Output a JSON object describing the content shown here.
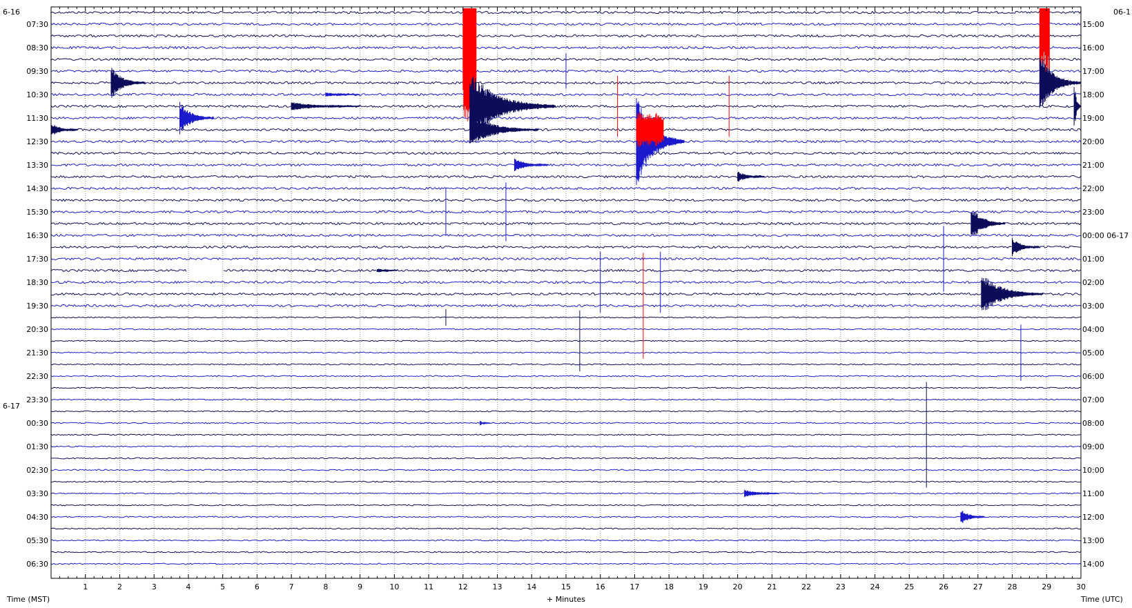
{
  "chart_data": {
    "type": "line",
    "title": "",
    "xlabel": "+ Minutes",
    "left_axis_label": "Time (MST)",
    "right_axis_label": "Time (UTC)",
    "x_range": [
      0,
      30
    ],
    "x_ticks": [
      "1",
      "2",
      "3",
      "4",
      "5",
      "6",
      "7",
      "8",
      "9",
      "10",
      "11",
      "12",
      "13",
      "14",
      "15",
      "16",
      "17",
      "18",
      "19",
      "20",
      "21",
      "22",
      "23",
      "24",
      "25",
      "26",
      "27",
      "28",
      "29",
      "30"
    ],
    "grid": true,
    "date_labels_left": [
      {
        "text": "6-16",
        "row_before": 0
      },
      {
        "text": "6-17",
        "row_before": 34
      }
    ],
    "date_label_right": "06-1",
    "rows_left": [
      "07:30",
      "08:30",
      "09:30",
      "10:30",
      "11:30",
      "12:30",
      "13:30",
      "14:30",
      "15:30",
      "16:30",
      "17:30",
      "18:30",
      "19:30",
      "20:30",
      "21:30",
      "22:30",
      "23:30",
      "00:30",
      "01:30",
      "02:30",
      "03:30",
      "04:30",
      "05:30",
      "06:30"
    ],
    "rows_right": [
      "15:00",
      "16:00",
      "17:00",
      "18:00",
      "19:00",
      "20:00",
      "21:00",
      "22:00",
      "23:00",
      "00:00 06-17",
      "01:00",
      "02:00",
      "03:00",
      "04:00",
      "05:00",
      "06:00",
      "07:00",
      "08:00",
      "09:00",
      "10:00",
      "11:00",
      "12:00",
      "13:00",
      "14:00"
    ],
    "trace_count": 48,
    "series_colors": [
      "#0c0c5a",
      "#1a1acc"
    ],
    "clip_color": "#ff0000",
    "events": [
      {
        "minute": 1.75,
        "trace": 6,
        "amp": 1.4,
        "dur": 1.0,
        "clip": false
      },
      {
        "minute": 3.75,
        "trace": 9,
        "amp": 1.4,
        "dur": 1.0,
        "clip": false
      },
      {
        "minute": 0.0,
        "trace": 10,
        "amp": 0.6,
        "dur": 0.8,
        "clip": false
      },
      {
        "minute": 12.0,
        "trace": 3,
        "amp": 6.5,
        "dur": 0.4,
        "clip": true
      },
      {
        "minute": 12.2,
        "trace": 8,
        "amp": 3.0,
        "dur": 2.5,
        "clip": false
      },
      {
        "minute": 12.2,
        "trace": 10,
        "amp": 1.5,
        "dur": 2.0,
        "clip": false
      },
      {
        "minute": 17.05,
        "trace": 11,
        "amp": 4.0,
        "dur": 1.4,
        "clip": false
      },
      {
        "minute": 17.05,
        "trace": 10,
        "amp": 1.5,
        "dur": 0.8,
        "clip": true
      },
      {
        "minute": 7.0,
        "trace": 8,
        "amp": 0.4,
        "dur": 2.0,
        "clip": false
      },
      {
        "minute": 13.5,
        "trace": 13,
        "amp": 0.6,
        "dur": 1.0,
        "clip": false
      },
      {
        "minute": 20.0,
        "trace": 14,
        "amp": 0.5,
        "dur": 0.8,
        "clip": false
      },
      {
        "minute": 28.8,
        "trace": 0,
        "amp": 6.0,
        "dur": 0.3,
        "clip": true
      },
      {
        "minute": 28.8,
        "trace": 6,
        "amp": 2.5,
        "dur": 2.0,
        "clip": false
      },
      {
        "minute": 29.8,
        "trace": 8,
        "amp": 2.5,
        "dur": 0.3,
        "clip": false
      },
      {
        "minute": 26.8,
        "trace": 18,
        "amp": 1.6,
        "dur": 1.0,
        "clip": false
      },
      {
        "minute": 28.0,
        "trace": 20,
        "amp": 0.8,
        "dur": 0.8,
        "clip": false
      },
      {
        "minute": 27.1,
        "trace": 24,
        "amp": 1.8,
        "dur": 1.8,
        "clip": false
      },
      {
        "minute": 20.2,
        "trace": 41,
        "amp": 0.4,
        "dur": 1.0,
        "clip": false
      },
      {
        "minute": 26.5,
        "trace": 43,
        "amp": 0.7,
        "dur": 0.7,
        "clip": false
      },
      {
        "minute": 8.0,
        "trace": 7,
        "amp": 0.2,
        "dur": 1.0,
        "clip": false
      },
      {
        "minute": 9.5,
        "trace": 22,
        "amp": 0.2,
        "dur": 0.6,
        "clip": false
      },
      {
        "minute": 12.5,
        "trace": 35,
        "amp": 0.2,
        "dur": 0.3,
        "clip": false
      }
    ],
    "spikes": [
      {
        "minute": 11.5,
        "trace": 17,
        "amp": 2.0,
        "clip": false
      },
      {
        "minute": 13.25,
        "trace": 17,
        "amp": 2.5,
        "clip": false
      },
      {
        "minute": 16.0,
        "trace": 23,
        "amp": 2.6,
        "clip": false
      },
      {
        "minute": 17.75,
        "trace": 23,
        "amp": 2.6,
        "clip": false
      },
      {
        "minute": 17.25,
        "trace": 25,
        "amp": 4.5,
        "clip": true
      },
      {
        "minute": 19.75,
        "trace": 8,
        "amp": 2.6,
        "clip": true
      },
      {
        "minute": 16.5,
        "trace": 8,
        "amp": 2.6,
        "clip": true
      },
      {
        "minute": 15.4,
        "trace": 28,
        "amp": 2.6,
        "clip": false
      },
      {
        "minute": 25.5,
        "trace": 36,
        "amp": 4.5,
        "clip": false
      },
      {
        "minute": 26.0,
        "trace": 21,
        "amp": 2.8,
        "clip": false
      },
      {
        "minute": 28.25,
        "trace": 29,
        "amp": 2.4,
        "clip": false
      },
      {
        "minute": 11.5,
        "trace": 26,
        "amp": 0.7,
        "clip": false
      },
      {
        "minute": 15.0,
        "trace": 5,
        "amp": 1.5,
        "clip": false
      }
    ],
    "gaps": [
      {
        "trace": 22,
        "minute_start": 3.95,
        "minute_end": 5.0
      }
    ]
  }
}
